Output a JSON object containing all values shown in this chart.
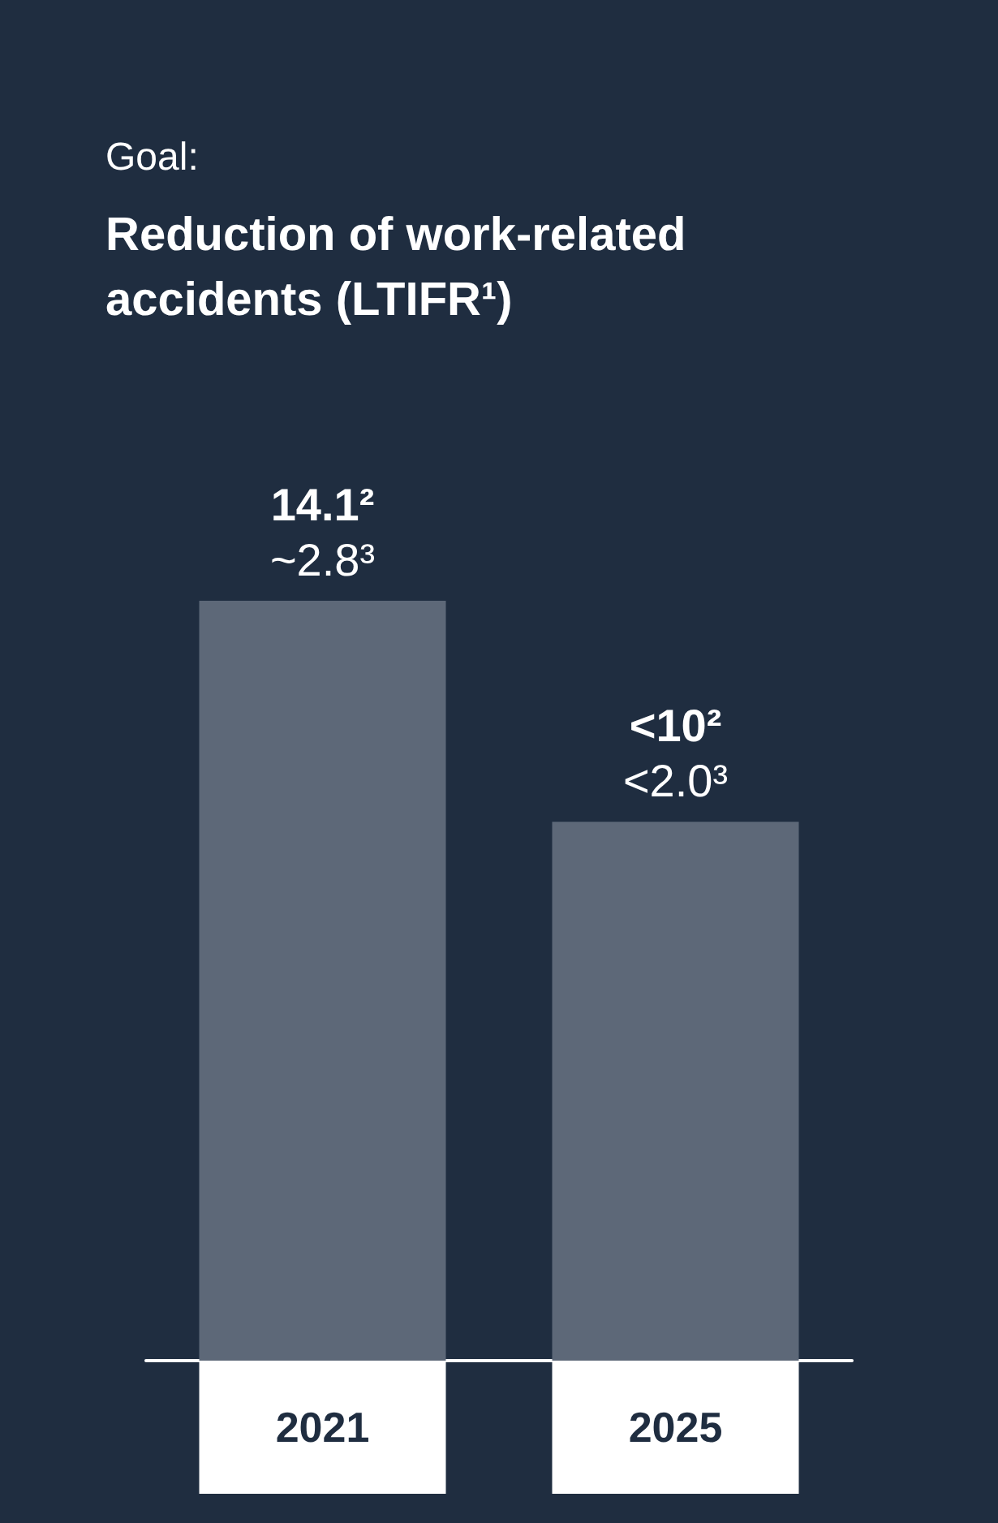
{
  "chart_data": {
    "type": "bar",
    "title": "Goal:",
    "subtitle": "Reduction of work-related accidents (LTIFR¹)",
    "categories": [
      "2021",
      "2025"
    ],
    "values": [
      14.1,
      10
    ],
    "value_labels": [
      "14.1²\n~2.8³",
      "<10²\n<2.0³"
    ],
    "colors": [
      "#5d6878",
      "#5d6878"
    ]
  }
}
